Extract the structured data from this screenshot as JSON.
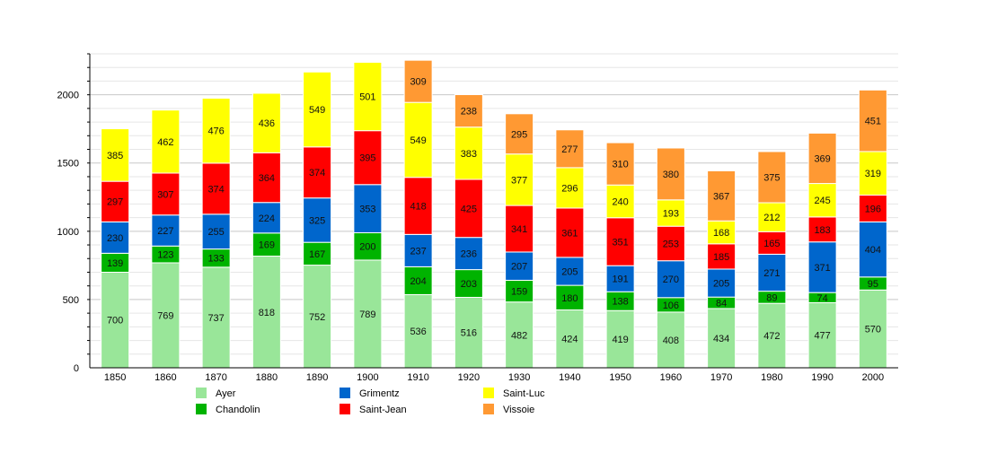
{
  "chart_data": {
    "type": "bar",
    "stacked": true,
    "categories": [
      "1850",
      "1860",
      "1870",
      "1880",
      "1890",
      "1900",
      "1910",
      "1920",
      "1930",
      "1940",
      "1950",
      "1960",
      "1970",
      "1980",
      "1990",
      "2000"
    ],
    "series": [
      {
        "name": "Ayer",
        "color": "#99e699",
        "values": [
          700,
          769,
          737,
          818,
          752,
          789,
          536,
          516,
          482,
          424,
          419,
          408,
          434,
          472,
          477,
          570
        ]
      },
      {
        "name": "Chandolin",
        "color": "#00b300",
        "values": [
          139,
          123,
          133,
          169,
          167,
          200,
          204,
          203,
          159,
          180,
          138,
          106,
          84,
          89,
          74,
          95
        ]
      },
      {
        "name": "Grimentz",
        "color": "#0066cc",
        "values": [
          230,
          227,
          255,
          224,
          325,
          353,
          237,
          236,
          207,
          205,
          191,
          270,
          205,
          271,
          371,
          404
        ]
      },
      {
        "name": "Saint-Jean",
        "color": "#ff0000",
        "values": [
          297,
          307,
          374,
          364,
          374,
          395,
          418,
          425,
          341,
          361,
          351,
          253,
          185,
          165,
          183,
          196
        ]
      },
      {
        "name": "Saint-Luc",
        "color": "#ffff00",
        "values": [
          385,
          462,
          476,
          436,
          549,
          501,
          549,
          383,
          377,
          296,
          240,
          193,
          168,
          212,
          245,
          319
        ]
      },
      {
        "name": "Vissoie",
        "color": "#ff9933",
        "values": [
          null,
          null,
          null,
          null,
          null,
          null,
          309,
          238,
          295,
          277,
          310,
          380,
          367,
          375,
          369,
          451
        ]
      }
    ],
    "yticks": [
      0,
      500,
      1000,
      1500,
      2000
    ],
    "ylim": [
      0,
      2300
    ],
    "grid": true,
    "legend": "bottom"
  }
}
